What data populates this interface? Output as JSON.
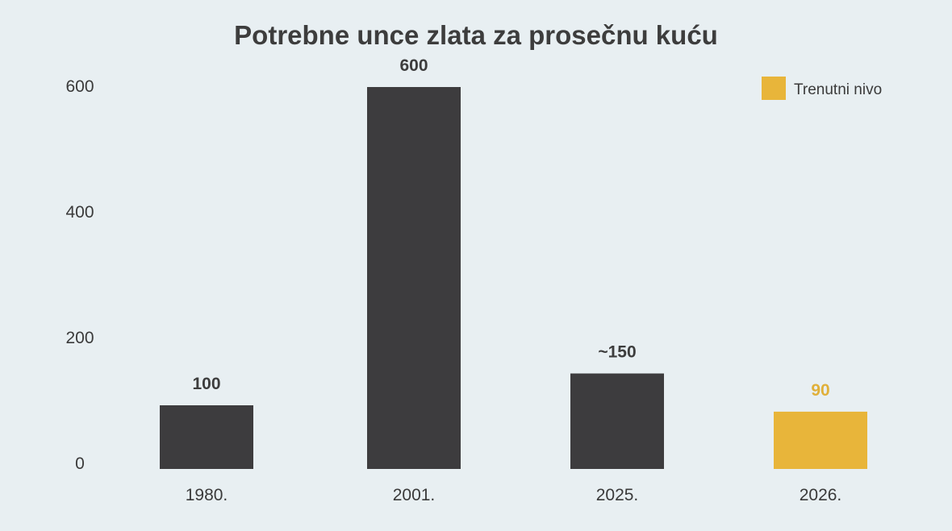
{
  "chart_data": {
    "type": "bar",
    "title": "Potrebne unce zlata za prosečnu kuću",
    "xlabel": "",
    "ylabel": "",
    "ylim": [
      0,
      600
    ],
    "yticks": [
      0,
      200,
      400,
      600
    ],
    "grid": false,
    "categories": [
      "1980.",
      "2001.",
      "2025.",
      "2026."
    ],
    "values": [
      100,
      600,
      150,
      90
    ],
    "value_labels": [
      "100",
      "600",
      "~150",
      "90"
    ],
    "highlight_index": 3,
    "legend": {
      "placement": "top-right",
      "entries": [
        {
          "label": "Trenutni nivo",
          "color": "#e8b53a"
        }
      ]
    },
    "colors": {
      "bar": "#3d3c3e",
      "highlight": "#e8b53a",
      "label": "#3d3d3d",
      "highlight_label": "#e0b03a"
    }
  }
}
